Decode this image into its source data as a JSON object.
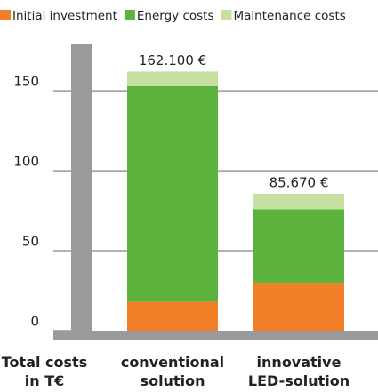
{
  "chart_data": {
    "type": "stacked-bar",
    "categories": [
      "conventional solution",
      "innovative LED-solution"
    ],
    "series": [
      {
        "name": "Initial investment",
        "color": "#f07f27",
        "values": [
          18,
          30
        ]
      },
      {
        "name": "Energy costs",
        "color": "#5cb43f",
        "values": [
          135,
          46
        ]
      },
      {
        "name": "Maintenance costs",
        "color": "#c5e09e",
        "values": [
          9.1,
          9.67
        ]
      }
    ],
    "totals": [
      162.1,
      85.67
    ],
    "total_labels": [
      "162.100 €",
      "85.670 €"
    ],
    "ylabel": [
      "Total costs",
      "in T€"
    ],
    "ylim": [
      0,
      179
    ],
    "yticks": [
      0,
      50,
      100,
      150
    ],
    "grid": true,
    "legend": "top"
  }
}
